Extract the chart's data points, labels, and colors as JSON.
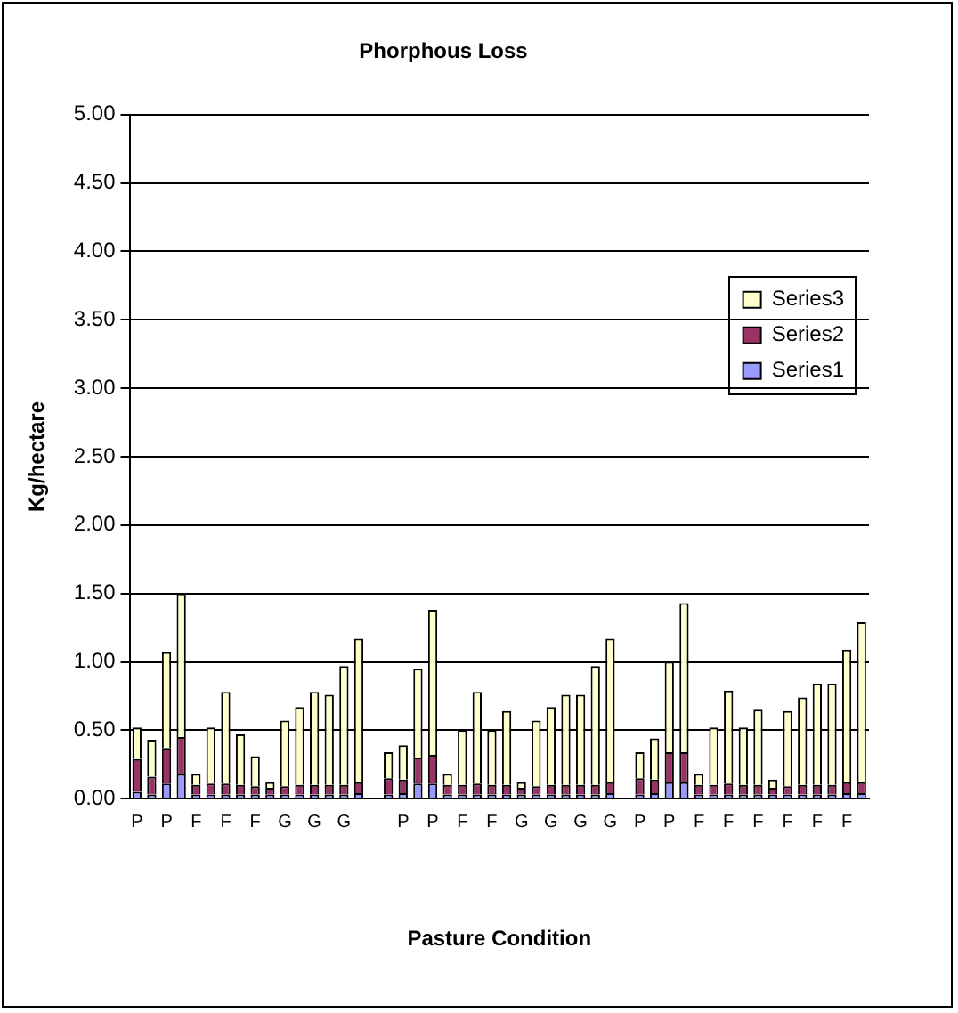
{
  "chart_data": {
    "type": "bar",
    "stacked": true,
    "title": "Phorphous Loss",
    "xlabel": "Pasture Condition",
    "ylabel": "Kg/hectare",
    "categories": [
      "P",
      null,
      "P",
      null,
      "F",
      null,
      "F",
      null,
      "F",
      null,
      "G",
      null,
      "G",
      null,
      "G",
      null,
      null,
      null,
      "P",
      null,
      "P",
      null,
      "F",
      null,
      "F",
      null,
      "G",
      null,
      "G",
      null,
      "G",
      null,
      "G",
      null,
      "P",
      null,
      "P",
      null,
      "F",
      null,
      "F",
      null,
      "F",
      null,
      "F",
      null,
      "F",
      null,
      "F",
      null
    ],
    "series": [
      {
        "name": "Series1",
        "color": "#9999ff",
        "values": [
          0.05,
          0.03,
          0.11,
          0.18,
          0.03,
          0.03,
          0.03,
          0.03,
          0.03,
          0.03,
          0.03,
          0.03,
          0.03,
          0.03,
          0.03,
          0.04,
          null,
          0.03,
          0.04,
          0.11,
          0.11,
          0.03,
          0.03,
          0.03,
          0.03,
          0.03,
          0.03,
          0.03,
          0.03,
          0.03,
          0.03,
          0.03,
          0.04,
          null,
          0.03,
          0.04,
          0.12,
          0.12,
          0.03,
          0.03,
          0.03,
          0.03,
          0.03,
          0.03,
          0.03,
          0.03,
          0.03,
          0.03,
          0.04,
          0.04
        ]
      },
      {
        "name": "Series2",
        "color": "#993366",
        "values": [
          0.24,
          0.13,
          0.26,
          0.27,
          0.07,
          0.08,
          0.08,
          0.07,
          0.06,
          0.05,
          0.06,
          0.07,
          0.07,
          0.07,
          0.07,
          0.08,
          null,
          0.12,
          0.1,
          0.19,
          0.21,
          0.07,
          0.07,
          0.08,
          0.07,
          0.07,
          0.05,
          0.06,
          0.07,
          0.07,
          0.07,
          0.07,
          0.08,
          null,
          0.12,
          0.1,
          0.22,
          0.22,
          0.07,
          0.07,
          0.08,
          0.07,
          0.07,
          0.05,
          0.06,
          0.07,
          0.07,
          0.07,
          0.08,
          0.08
        ]
      },
      {
        "name": "Series3",
        "color": "#ffffcc",
        "values": [
          0.23,
          0.27,
          0.7,
          1.05,
          0.08,
          0.41,
          0.67,
          0.37,
          0.22,
          0.04,
          0.48,
          0.57,
          0.68,
          0.66,
          0.87,
          1.05,
          null,
          0.19,
          0.25,
          0.65,
          1.06,
          0.08,
          0.4,
          0.67,
          0.4,
          0.54,
          0.04,
          0.48,
          0.57,
          0.66,
          0.66,
          0.87,
          1.05,
          null,
          0.19,
          0.3,
          0.66,
          1.09,
          0.08,
          0.42,
          0.68,
          0.42,
          0.55,
          0.06,
          0.55,
          0.64,
          0.74,
          0.74,
          0.97,
          1.17
        ]
      }
    ],
    "ylim": [
      0,
      5
    ],
    "yticks": [
      {
        "value": 0,
        "label": "0.00"
      },
      {
        "value": 0.5,
        "label": "0.50"
      },
      {
        "value": 1,
        "label": "1.00"
      },
      {
        "value": 1.5,
        "label": "1.50"
      },
      {
        "value": 2,
        "label": "2.00"
      },
      {
        "value": 2.5,
        "label": "2.50"
      },
      {
        "value": 3,
        "label": "3.00"
      },
      {
        "value": 3.5,
        "label": "3.50"
      },
      {
        "value": 4,
        "label": "4.00"
      },
      {
        "value": 4.5,
        "label": "4.50"
      },
      {
        "value": 5,
        "label": "5.00"
      }
    ],
    "grid": "y",
    "legend": "top right"
  }
}
